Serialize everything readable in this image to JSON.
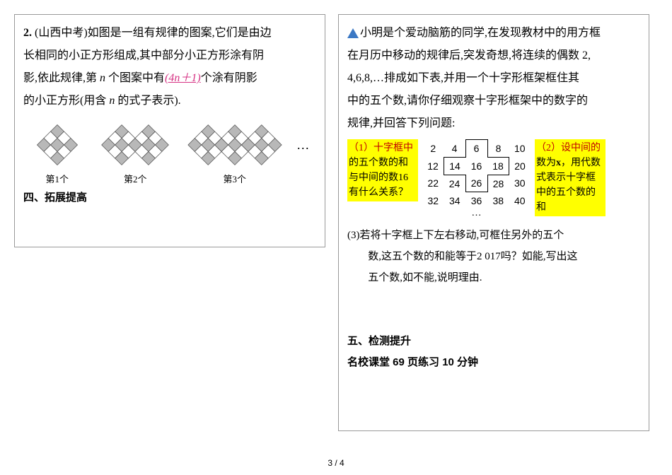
{
  "left": {
    "qnum": "2.",
    "source": "(山西中考)",
    "line1": "如图是一组有规律的图案,它们是由边",
    "line2": "长相同的小正方形组成,其中部分小正方形涂有阴",
    "line3a": "影,依此规律,第 ",
    "line3n": "n",
    "line3b": " 个图案中有",
    "formula": "(4n＋1)",
    "line3c": "个涂有阴影",
    "line4a": "的小正方形(用含 ",
    "line4n": "n",
    "line4b": " 的式子表示).",
    "labels": [
      "第1个",
      "第2个",
      "第3个"
    ],
    "ellipsis": "…",
    "section4": "四、拓展提高",
    "diamond_fill": "#b8b8b8",
    "diamond_stroke": "#555555",
    "diamond_white": "#ffffff"
  },
  "right": {
    "intro1": "小明是个爱动脑筋的同学,在发现教材中的用方框",
    "intro2": "在月历中移动的规律后,突发奇想,将连续的偶数 2,",
    "intro3": "4,6,8,…排成如下表,并用一个十字形框架框住其",
    "intro4": "中的五个数,请你仔细观察十字形框架中的数字的",
    "intro5": "规律,并回答下列问题:",
    "box1": {
      "l1": "（1）十字框中",
      "l2": "的五个数的和与",
      "l3": "中间的数16有什",
      "l4": "么关系？"
    },
    "box2": {
      "l1": "（2）设中间的",
      "l2a": "数为",
      "l2x": "x",
      "l2b": "，用代数",
      "l3": "式表示十字框",
      "l4": "中的五个数的",
      "l5": "和"
    },
    "rows": [
      [
        "2",
        "4",
        "6",
        "8",
        "10"
      ],
      [
        "12",
        "14",
        "16",
        "18",
        "20"
      ],
      [
        "22",
        "24",
        "26",
        "28",
        "30"
      ],
      [
        "32",
        "34",
        "36",
        "38",
        "40"
      ]
    ],
    "table_dots": "…",
    "q3a": "(3)若将十字框上下左右移动,可框住另外的五个",
    "q3b": "数,这五个数的和能等于2 017吗？如能,写出这",
    "q3c": "五个数,如不能,说明理由.",
    "section5": "五、检测提升",
    "hw": "名校课堂 69 页练习 10 分钟"
  },
  "page": "3 / 4"
}
